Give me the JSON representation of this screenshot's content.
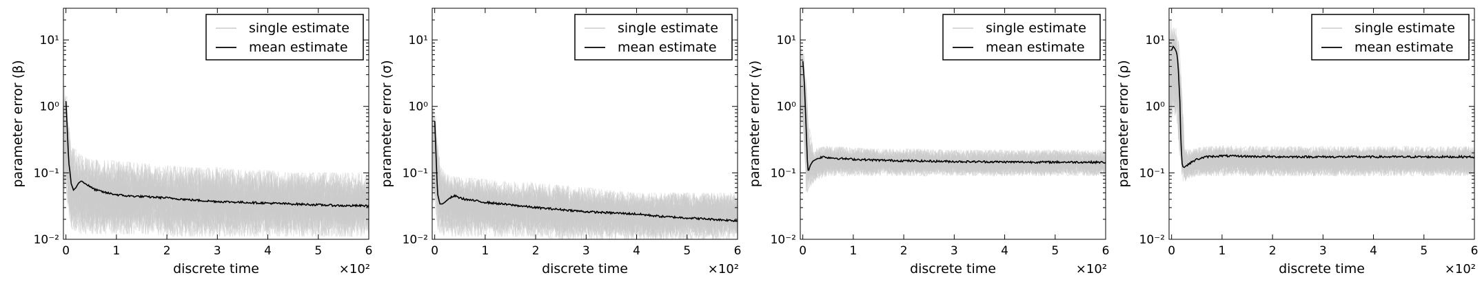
{
  "figure": {
    "legend": {
      "single_label": "single estimate",
      "mean_label": "mean estimate",
      "placement": "upper-right"
    },
    "colors": {
      "single": "#cccccc",
      "mean": "#000000",
      "axes": "#000000",
      "background": "#ffffff"
    }
  },
  "chart_data": [
    {
      "type": "line",
      "xlabel": "discrete time",
      "ylabel": "parameter error (β)",
      "x_multiplier_label": "×10²",
      "xlim": [
        -0.05,
        6.0
      ],
      "ylim": [
        0.01,
        30
      ],
      "y_scale": "log",
      "xticks": [
        0,
        1,
        2,
        3,
        4,
        5,
        6
      ],
      "yticks": [
        0.01,
        0.1,
        1,
        10
      ],
      "ytick_labels": [
        "10⁻²",
        "10⁻¹",
        "10⁰",
        "10¹"
      ],
      "series": [
        {
          "name": "single estimate",
          "role": "band",
          "x": [
            0,
            0.05,
            0.1,
            0.2,
            0.3,
            0.5,
            1,
            1.5,
            2,
            2.5,
            3,
            3.5,
            4,
            4.5,
            5,
            5.5,
            6
          ],
          "upper": [
            2.0,
            0.6,
            0.25,
            0.22,
            0.18,
            0.16,
            0.15,
            0.14,
            0.13,
            0.12,
            0.12,
            0.11,
            0.11,
            0.1,
            0.1,
            0.1,
            0.1
          ],
          "lower": [
            0.05,
            0.02,
            0.015,
            0.013,
            0.012,
            0.012,
            0.012,
            0.012,
            0.011,
            0.011,
            0.011,
            0.011,
            0.011,
            0.011,
            0.011,
            0.011,
            0.011
          ]
        },
        {
          "name": "mean estimate",
          "x": [
            0,
            0.02,
            0.05,
            0.1,
            0.15,
            0.2,
            0.25,
            0.3,
            0.35,
            0.4,
            0.5,
            0.6,
            0.8,
            1,
            1.2,
            1.5,
            2,
            2.5,
            3,
            3.5,
            4,
            4.5,
            5,
            5.5,
            6
          ],
          "y": [
            1.2,
            0.5,
            0.15,
            0.07,
            0.055,
            0.06,
            0.07,
            0.075,
            0.072,
            0.068,
            0.06,
            0.055,
            0.05,
            0.047,
            0.045,
            0.044,
            0.042,
            0.039,
            0.037,
            0.036,
            0.035,
            0.034,
            0.033,
            0.032,
            0.032
          ]
        }
      ]
    },
    {
      "type": "line",
      "xlabel": "discrete time",
      "ylabel": "parameter error (σ)",
      "x_multiplier_label": "×10²",
      "xlim": [
        -0.05,
        6.0
      ],
      "ylim": [
        0.01,
        30
      ],
      "y_scale": "log",
      "xticks": [
        0,
        1,
        2,
        3,
        4,
        5,
        6
      ],
      "yticks": [
        0.01,
        0.1,
        1,
        10
      ],
      "ytick_labels": [
        "10⁻²",
        "10⁻¹",
        "10⁰",
        "10¹"
      ],
      "series": [
        {
          "name": "single estimate",
          "role": "band",
          "x": [
            0,
            0.05,
            0.1,
            0.2,
            0.3,
            0.5,
            1,
            1.5,
            2,
            2.5,
            3,
            3.5,
            4,
            4.5,
            5,
            5.5,
            6
          ],
          "upper": [
            1.2,
            0.4,
            0.13,
            0.1,
            0.09,
            0.085,
            0.08,
            0.075,
            0.07,
            0.065,
            0.06,
            0.055,
            0.05,
            0.05,
            0.05,
            0.05,
            0.05
          ],
          "lower": [
            0.03,
            0.015,
            0.012,
            0.011,
            0.011,
            0.011,
            0.011,
            0.011,
            0.011,
            0.01,
            0.01,
            0.01,
            0.01,
            0.01,
            0.01,
            0.01,
            0.01
          ]
        },
        {
          "name": "mean estimate",
          "x": [
            0,
            0.02,
            0.05,
            0.1,
            0.15,
            0.2,
            0.3,
            0.4,
            0.5,
            0.6,
            0.8,
            1,
            1.5,
            2,
            2.5,
            3,
            3.5,
            4,
            4.5,
            5,
            5.5,
            6
          ],
          "y": [
            0.6,
            0.2,
            0.05,
            0.034,
            0.034,
            0.036,
            0.042,
            0.045,
            0.042,
            0.04,
            0.038,
            0.036,
            0.033,
            0.03,
            0.028,
            0.026,
            0.025,
            0.024,
            0.022,
            0.021,
            0.02,
            0.019
          ]
        }
      ]
    },
    {
      "type": "line",
      "xlabel": "discrete time",
      "ylabel": "parameter error (γ)",
      "x_multiplier_label": "×10²",
      "xlim": [
        -0.05,
        6.0
      ],
      "ylim": [
        0.01,
        30
      ],
      "y_scale": "log",
      "xticks": [
        0,
        1,
        2,
        3,
        4,
        5,
        6
      ],
      "yticks": [
        0.01,
        0.1,
        1,
        10
      ],
      "ytick_labels": [
        "10⁻²",
        "10⁻¹",
        "10⁰",
        "10¹"
      ],
      "series": [
        {
          "name": "single estimate",
          "role": "band",
          "x": [
            0,
            0.05,
            0.1,
            0.2,
            0.3,
            0.5,
            1,
            1.5,
            2,
            3,
            4,
            5,
            6
          ],
          "upper": [
            8,
            4,
            0.6,
            0.22,
            0.24,
            0.25,
            0.24,
            0.23,
            0.23,
            0.22,
            0.22,
            0.22,
            0.22
          ],
          "lower": [
            0.5,
            0.05,
            0.05,
            0.07,
            0.08,
            0.09,
            0.09,
            0.09,
            0.09,
            0.09,
            0.09,
            0.09,
            0.09
          ]
        },
        {
          "name": "mean estimate",
          "x": [
            0,
            0.02,
            0.05,
            0.08,
            0.1,
            0.12,
            0.15,
            0.2,
            0.3,
            0.4,
            0.5,
            0.7,
            1,
            1.5,
            2,
            2.5,
            3,
            3.5,
            4,
            4.5,
            5,
            5.5,
            6
          ],
          "y": [
            4.8,
            3.0,
            0.8,
            0.2,
            0.11,
            0.11,
            0.13,
            0.15,
            0.165,
            0.175,
            0.17,
            0.165,
            0.16,
            0.155,
            0.152,
            0.15,
            0.148,
            0.147,
            0.146,
            0.145,
            0.145,
            0.145,
            0.144
          ]
        }
      ]
    },
    {
      "type": "line",
      "xlabel": "discrete time",
      "ylabel": "parameter error (ρ)",
      "x_multiplier_label": "×10²",
      "xlim": [
        -0.05,
        6.0
      ],
      "ylim": [
        0.01,
        30
      ],
      "y_scale": "log",
      "xticks": [
        0,
        1,
        2,
        3,
        4,
        5,
        6
      ],
      "yticks": [
        0.01,
        0.1,
        1,
        10
      ],
      "ytick_labels": [
        "10⁻²",
        "10⁻¹",
        "10⁰",
        "10¹"
      ],
      "series": [
        {
          "name": "single estimate",
          "role": "band",
          "x": [
            0,
            0.05,
            0.1,
            0.15,
            0.2,
            0.25,
            0.3,
            0.5,
            1,
            2,
            3,
            4,
            5,
            6
          ],
          "upper": [
            20,
            18,
            15,
            8,
            2,
            0.3,
            0.22,
            0.24,
            0.26,
            0.25,
            0.25,
            0.25,
            0.25,
            0.25
          ],
          "lower": [
            0.5,
            0.8,
            0.6,
            0.2,
            0.08,
            0.07,
            0.08,
            0.09,
            0.09,
            0.09,
            0.09,
            0.09,
            0.09,
            0.09
          ]
        },
        {
          "name": "mean estimate",
          "x": [
            0,
            0.03,
            0.06,
            0.1,
            0.12,
            0.15,
            0.18,
            0.2,
            0.22,
            0.25,
            0.3,
            0.4,
            0.5,
            0.7,
            1,
            1.5,
            2,
            3,
            4,
            5,
            6
          ],
          "y": [
            7.0,
            8.0,
            7.5,
            6.5,
            5.0,
            2.0,
            0.4,
            0.15,
            0.125,
            0.12,
            0.13,
            0.145,
            0.16,
            0.175,
            0.18,
            0.177,
            0.175,
            0.174,
            0.174,
            0.174,
            0.174
          ]
        }
      ]
    }
  ]
}
